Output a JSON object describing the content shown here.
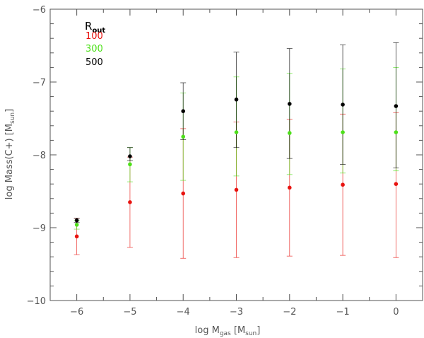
{
  "chart_data": {
    "type": "scatter",
    "xlabel": {
      "main": "log M",
      "sub": "gas",
      "unit_open": " [M",
      "unit_sub": "sun",
      "unit_close": "]"
    },
    "ylabel": {
      "main": "log Mass(C+) [M",
      "sub": "sun",
      "close": "]"
    },
    "xlim": [
      -6.5,
      0.5
    ],
    "ylim": [
      -10,
      -6
    ],
    "xticks": [
      -6,
      -5,
      -4,
      -3,
      -2,
      -1,
      0
    ],
    "yticks": [
      -10,
      -9,
      -8,
      -7,
      -6
    ],
    "xtick_labels": [
      "−6",
      "−5",
      "−4",
      "−3",
      "−2",
      "−1",
      "0"
    ],
    "ytick_labels": [
      "−10",
      "−9",
      "−8",
      "−7",
      "−6"
    ],
    "grid": false,
    "legend": {
      "title": "R",
      "title_sub": "out",
      "placement": "top-left",
      "entries": [
        "100",
        "300",
        "500"
      ]
    },
    "series": [
      {
        "name": "100",
        "color": "#e8130f",
        "x": [
          -6,
          -5,
          -4,
          -3,
          -2,
          -1,
          0
        ],
        "y": [
          -9.12,
          -8.65,
          -8.53,
          -8.48,
          -8.45,
          -8.41,
          -8.4
        ],
        "err_low": [
          -9.37,
          -9.27,
          -9.42,
          -9.41,
          -9.39,
          -9.38,
          -9.41
        ],
        "err_high": [
          -8.87,
          -8.03,
          -7.64,
          -7.55,
          -7.51,
          -7.44,
          -7.42
        ]
      },
      {
        "name": "300",
        "color": "#4de01a",
        "x": [
          -6,
          -5,
          -4,
          -3,
          -2,
          -1,
          0
        ],
        "y": [
          -8.96,
          -8.13,
          -7.75,
          -7.69,
          -7.7,
          -7.69,
          -7.69
        ],
        "err_low": [
          -9.02,
          -8.37,
          -8.35,
          -8.29,
          -8.27,
          -8.25,
          -8.22
        ],
        "err_high": [
          -8.9,
          -7.9,
          -7.15,
          -6.93,
          -6.88,
          -6.82,
          -6.8
        ]
      },
      {
        "name": "500",
        "color": "#000000",
        "x": [
          -6,
          -5,
          -4,
          -3,
          -2,
          -1,
          0
        ],
        "y": [
          -8.9,
          -8.02,
          -7.4,
          -7.24,
          -7.3,
          -7.31,
          -7.33
        ],
        "err_low": [
          -8.93,
          -8.08,
          -7.79,
          -7.9,
          -8.05,
          -8.13,
          -8.18
        ],
        "err_high": [
          -8.87,
          -7.9,
          -7.01,
          -6.59,
          -6.54,
          -6.49,
          -6.46
        ]
      }
    ]
  }
}
